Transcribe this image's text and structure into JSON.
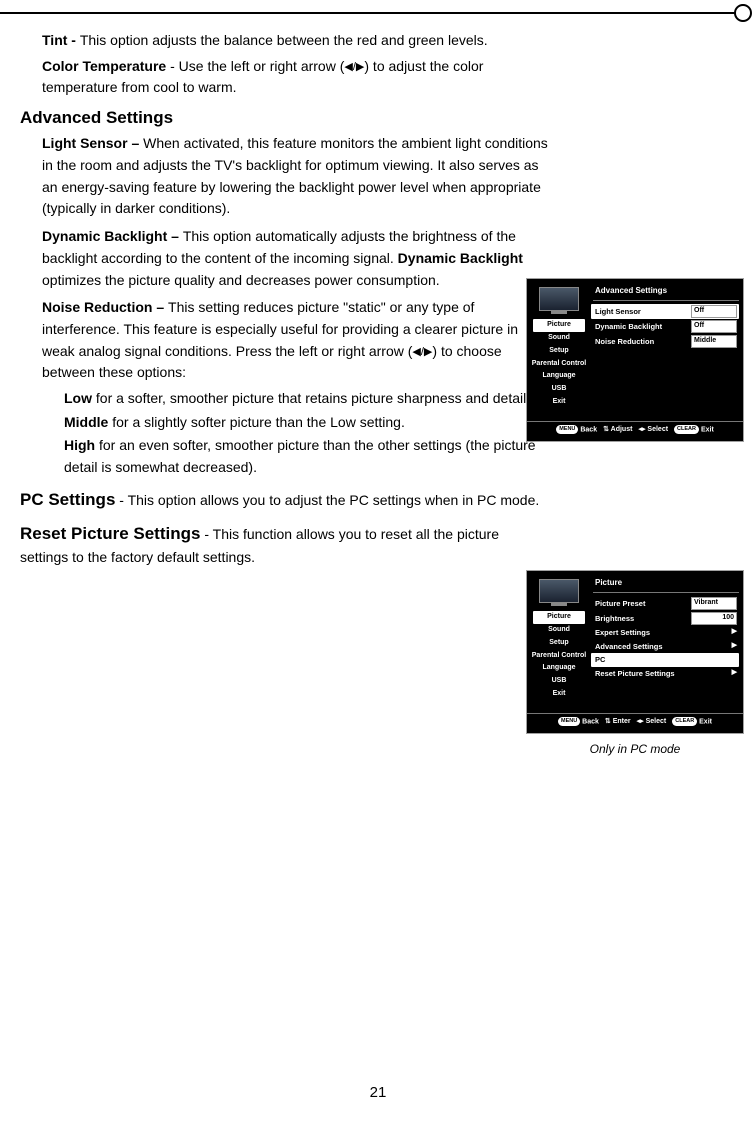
{
  "body": {
    "tint_label": "Tint - ",
    "tint_text": "This option adjusts the balance between the red and green levels.",
    "colortemp_label": "Color Temperature",
    "colortemp_text_a": " - Use the left or right arrow (",
    "colortemp_text_b": ") to adjust the color temperature from cool to warm.",
    "adv_heading": "Advanced Settings",
    "light_sensor_label": "Light Sensor – ",
    "light_sensor_text": "When activated, this feature monitors the ambient light conditions in the room and adjusts the TV's backlight for optimum viewing. It also serves as an energy-saving feature by lowering the backlight power level when appropriate (typically in darker conditions).",
    "dyn_label": "Dynamic Backlight – ",
    "dyn_text_a": "This option automatically adjusts the brightness of the backlight according to the content of the incoming signal. ",
    "dyn_bold": "Dynamic Backlight",
    "dyn_text_b": " optimizes the picture quality and decreases power consumption.",
    "noise_label": "Noise Reduction – ",
    "noise_text_a": "This setting reduces picture \"static\" or any type of interference. This feature is especially useful for providing a clearer picture in weak analog signal conditions. Press the left or right  arrow (",
    "noise_text_b": ") to choose between these options:",
    "low_label": "Low",
    "low_text": " for a softer, smoother picture that retains picture sharpness and detail.",
    "mid_label": "Middle",
    "mid_text": " for a slightly softer picture than the Low setting.",
    "high_label": "High",
    "high_text": " for an even softer, smoother picture than the other settings (the picture detail is somewhat decreased).",
    "pc_heading": "PC Settings",
    "pc_text": " - This option allows you to adjust the PC settings when in PC mode.",
    "reset_heading": "Reset Picture Settings",
    "reset_text": " - This function allows you to reset all the picture settings to the factory default settings.",
    "arrow_glyph": "◀/▶"
  },
  "osd_side": {
    "picture": "Picture",
    "sound": "Sound",
    "setup": "Setup",
    "parental": "Parental Control",
    "language": "Language",
    "usb": "USB",
    "exit": "Exit"
  },
  "osd1": {
    "title": "Advanced Settings",
    "rows": [
      {
        "label": "Light Sensor",
        "value": "Off",
        "hl": true
      },
      {
        "label": "Dynamic Backlight",
        "value": "Off"
      },
      {
        "label": "Noise Reduction",
        "value": "Middle"
      }
    ],
    "footer": {
      "menu": "MENU",
      "back": "Back",
      "adjust": "Adjust",
      "select": "Select",
      "clear": "CLEAR",
      "exit": "Exit"
    }
  },
  "osd2": {
    "title": "Picture",
    "rows": [
      {
        "label": "Picture Preset",
        "value": "Vibrant"
      },
      {
        "label": "Brightness",
        "value": "100",
        "right": true
      },
      {
        "label": "Expert Settings",
        "chev": true
      },
      {
        "label": "Advanced Settings",
        "chev": true
      },
      {
        "label": "PC",
        "chev": true,
        "hl": true
      },
      {
        "label": "Reset Picture Settings",
        "chev": true
      }
    ],
    "footer": {
      "menu": "MENU",
      "back": "Back",
      "enter": "Enter",
      "select": "Select",
      "clear": "CLEAR",
      "exit": "Exit"
    },
    "caption": "Only in PC mode"
  },
  "page_number": "21"
}
